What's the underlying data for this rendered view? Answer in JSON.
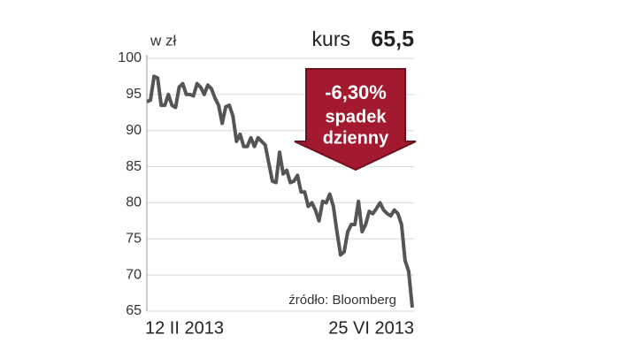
{
  "chart_data": {
    "type": "line",
    "unit_label": "w zł",
    "price_caption": "kurs",
    "price": "65,5",
    "change": "-6,30%",
    "change_caption": [
      "spadek",
      "dzienny"
    ],
    "source": "źródło: Bloomberg",
    "categories": [
      "12 II 2013",
      null,
      null,
      null,
      null,
      null,
      null,
      null,
      null,
      null,
      null,
      null,
      null,
      null,
      null,
      null,
      null,
      null,
      null,
      null,
      null,
      null,
      null,
      null,
      null,
      null,
      null,
      null,
      null,
      null,
      null,
      null,
      null,
      null,
      null,
      null,
      null,
      null,
      null,
      null,
      null,
      null,
      null,
      null,
      null,
      null,
      null,
      null,
      null,
      null,
      null,
      null,
      null,
      null,
      null,
      null,
      null,
      null,
      null,
      null,
      null,
      null,
      null,
      null,
      null,
      null,
      null,
      null,
      null,
      null,
      null,
      null,
      null,
      null,
      "25 VI 2013"
    ],
    "values": [
      94,
      94.2,
      97.5,
      97.3,
      93.5,
      93.5,
      95,
      93.5,
      93.2,
      96,
      96.5,
      95,
      95,
      94.8,
      96.5,
      96,
      95,
      96.3,
      95.8,
      94.5,
      93.5,
      91,
      93.3,
      93.5,
      92,
      88.5,
      89.5,
      87.8,
      87.8,
      89,
      87.8,
      89,
      88.5,
      88,
      85.5,
      83,
      82.8,
      87,
      84,
      84.5,
      82.8,
      83,
      83.8,
      81.5,
      81.5,
      79.5,
      80,
      79,
      77.5,
      80.2,
      80,
      81.2,
      79.5,
      76,
      72.8,
      73.2,
      76,
      77,
      77,
      80.2,
      76,
      77,
      78.8,
      78.5,
      79.2,
      80,
      79,
      78.5,
      78.2,
      79,
      78.5,
      77,
      72,
      70.5,
      65.5
    ],
    "color": "#555555",
    "ylim": [
      65,
      100
    ],
    "yticks": [
      65,
      70,
      75,
      80,
      85,
      90,
      95,
      100
    ],
    "grid": true
  }
}
